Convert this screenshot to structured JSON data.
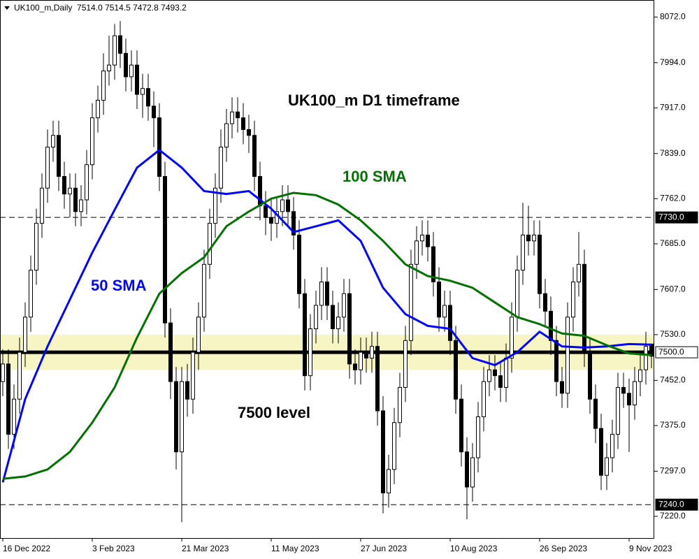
{
  "chart_data": {
    "type": "candlestick",
    "header": "UK100_m,Daily  7514.0 7514.5 7472.8 7493.2",
    "title": "UK100_m D1 timeframe",
    "annotation": "7500 level",
    "xlim": [
      -0.5,
      116.5
    ],
    "xticks": [
      {
        "value": 0,
        "label": "16 Dec 2022"
      },
      {
        "value": 16,
        "label": "3 Feb 2023"
      },
      {
        "value": 32,
        "label": "21 Mar 2023"
      },
      {
        "value": 48,
        "label": "11 May 2023"
      },
      {
        "value": 64,
        "label": "27 Jun 2023"
      },
      {
        "value": 80,
        "label": "10 Aug 2023"
      },
      {
        "value": 96,
        "label": "26 Sep 2023"
      },
      {
        "value": 112,
        "label": "9 Nov 2023"
      }
    ],
    "ylim": [
      7183,
      8101
    ],
    "yticks": [
      {
        "value": 8072,
        "label": "8072.0"
      },
      {
        "value": 7994,
        "label": "7994.0"
      },
      {
        "value": 7917,
        "label": "7917.0"
      },
      {
        "value": 7839,
        "label": "7839.0"
      },
      {
        "value": 7762,
        "label": "7762.0"
      },
      {
        "value": 7685,
        "label": "7685.0"
      },
      {
        "value": 7607,
        "label": "7607.0"
      },
      {
        "value": 7530,
        "label": "7530.0"
      },
      {
        "value": 7452,
        "label": "7452.0"
      },
      {
        "value": 7375,
        "label": "7375.0"
      },
      {
        "value": 7297,
        "label": "7297.0"
      },
      {
        "value": 7220,
        "label": "7220.0"
      }
    ],
    "up_color": "#ffffff",
    "down_color": "#000000",
    "zone": [
      7470,
      7530
    ],
    "zone_color": "#f7f5c4",
    "levels": [
      {
        "value": 7730,
        "label": "7730.0",
        "style": "dashed"
      },
      {
        "value": 7500,
        "label": "7500.0",
        "style": "thick"
      },
      {
        "value": 7240,
        "label": "7240.0",
        "style": "dashed"
      }
    ],
    "open": [
      7450,
      7480,
      7360,
      7420,
      7500,
      7560,
      7640,
      7720,
      7780,
      7850,
      7870,
      7800,
      7770,
      7780,
      7740,
      7760,
      7820,
      7900,
      7930,
      7980,
      7990,
      8040,
      8010,
      7970,
      7990,
      7940,
      7950,
      7920,
      7900,
      7800,
      7550,
      7450,
      7330,
      7450,
      7420,
      7500,
      7560,
      7650,
      7720,
      7780,
      7850,
      7890,
      7910,
      7900,
      7880,
      7870,
      7800,
      7750,
      7730,
      7720,
      7740,
      7760,
      7740,
      7700,
      7600,
      7460,
      7540,
      7580,
      7620,
      7580,
      7540,
      7560,
      7600,
      7480,
      7470,
      7500,
      7490,
      7510,
      7400,
      7260,
      7300,
      7380,
      7440,
      7520,
      7650,
      7690,
      7700,
      7680,
      7620,
      7560,
      7580,
      7520,
      7420,
      7330,
      7270,
      7320,
      7390,
      7450,
      7470,
      7460,
      7440,
      7490,
      7560,
      7640,
      7700,
      7690,
      7700,
      7600,
      7570,
      7520,
      7450,
      7430,
      7560,
      7620,
      7650,
      7500,
      7420,
      7370,
      7290,
      7320,
      7360,
      7440,
      7430,
      7410,
      7450,
      7470,
      7514.0
    ],
    "high": [
      7505,
      7505,
      7445,
      7525,
      7585,
      7665,
      7745,
      7805,
      7880,
      7895,
      7895,
      7825,
      7805,
      7805,
      7785,
      7845,
      7925,
      7955,
      8010,
      8040,
      8060,
      8065,
      8035,
      8015,
      8015,
      7975,
      7975,
      7945,
      7925,
      7825,
      7575,
      7475,
      7475,
      7480,
      7525,
      7585,
      7675,
      7745,
      7805,
      7880,
      7915,
      7935,
      7935,
      7925,
      7905,
      7895,
      7825,
      7775,
      7760,
      7765,
      7785,
      7785,
      7765,
      7725,
      7625,
      7565,
      7605,
      7645,
      7645,
      7605,
      7585,
      7625,
      7625,
      7505,
      7525,
      7525,
      7535,
      7535,
      7425,
      7325,
      7405,
      7465,
      7545,
      7675,
      7715,
      7725,
      7725,
      7705,
      7645,
      7605,
      7605,
      7545,
      7445,
      7355,
      7345,
      7415,
      7475,
      7495,
      7495,
      7485,
      7515,
      7585,
      7665,
      7755,
      7750,
      7725,
      7725,
      7625,
      7595,
      7545,
      7475,
      7585,
      7645,
      7705,
      7675,
      7525,
      7445,
      7395,
      7345,
      7385,
      7465,
      7465,
      7455,
      7475,
      7495,
      7535,
      7514.5
    ],
    "low": [
      7425,
      7335,
      7335,
      7395,
      7475,
      7535,
      7615,
      7695,
      7755,
      7825,
      7775,
      7745,
      7730,
      7715,
      7715,
      7735,
      7795,
      7875,
      7905,
      7955,
      7965,
      7985,
      7945,
      7945,
      7915,
      7900,
      7895,
      7850,
      7775,
      7525,
      7420,
      7300,
      7210,
      7390,
      7395,
      7470,
      7535,
      7625,
      7695,
      7755,
      7825,
      7865,
      7875,
      7855,
      7840,
      7775,
      7725,
      7700,
      7690,
      7695,
      7715,
      7715,
      7675,
      7575,
      7435,
      7435,
      7515,
      7555,
      7555,
      7515,
      7515,
      7535,
      7455,
      7445,
      7445,
      7465,
      7465,
      7375,
      7225,
      7235,
      7275,
      7355,
      7415,
      7495,
      7625,
      7665,
      7655,
      7595,
      7535,
      7535,
      7495,
      7395,
      7305,
      7215,
      7245,
      7295,
      7365,
      7425,
      7435,
      7415,
      7415,
      7465,
      7535,
      7615,
      7665,
      7665,
      7575,
      7545,
      7495,
      7425,
      7405,
      7405,
      7535,
      7595,
      7475,
      7395,
      7345,
      7265,
      7265,
      7295,
      7335,
      7405,
      7330,
      7385,
      7425,
      7445,
      7472.8
    ],
    "close": [
      7480,
      7360,
      7420,
      7500,
      7560,
      7640,
      7720,
      7780,
      7850,
      7870,
      7800,
      7770,
      7780,
      7740,
      7760,
      7820,
      7900,
      7930,
      7980,
      7990,
      8040,
      8010,
      7970,
      7990,
      7940,
      7950,
      7920,
      7900,
      7800,
      7550,
      7450,
      7330,
      7450,
      7420,
      7500,
      7560,
      7650,
      7720,
      7780,
      7850,
      7890,
      7910,
      7900,
      7880,
      7870,
      7800,
      7750,
      7730,
      7720,
      7740,
      7760,
      7740,
      7700,
      7600,
      7460,
      7540,
      7580,
      7620,
      7580,
      7540,
      7560,
      7600,
      7480,
      7470,
      7500,
      7490,
      7510,
      7400,
      7260,
      7300,
      7380,
      7440,
      7520,
      7650,
      7690,
      7700,
      7680,
      7620,
      7560,
      7580,
      7520,
      7420,
      7330,
      7270,
      7320,
      7390,
      7450,
      7470,
      7460,
      7440,
      7490,
      7560,
      7640,
      7700,
      7690,
      7700,
      7600,
      7570,
      7520,
      7450,
      7430,
      7560,
      7620,
      7650,
      7500,
      7420,
      7370,
      7290,
      7320,
      7360,
      7440,
      7430,
      7410,
      7450,
      7470,
      7510,
      7493.2
    ],
    "series": [
      {
        "name": "50 SMA",
        "color": "#0000ff",
        "x": [
          0,
          4,
          8,
          12,
          16,
          20,
          24,
          28,
          32,
          36,
          40,
          44,
          48,
          52,
          56,
          60,
          64,
          68,
          72,
          76,
          80,
          84,
          88,
          92,
          96,
          100,
          104,
          108,
          112,
          116
        ],
        "values": [
          7278,
          7420,
          7510,
          7590,
          7670,
          7743,
          7815,
          7845,
          7815,
          7775,
          7770,
          7775,
          7745,
          7705,
          7715,
          7725,
          7690,
          7610,
          7565,
          7545,
          7540,
          7490,
          7478,
          7500,
          7535,
          7510,
          7508,
          7510,
          7514,
          7513
        ]
      },
      {
        "name": "100 SMA",
        "color": "#007000",
        "x": [
          0,
          4,
          8,
          12,
          16,
          20,
          24,
          28,
          32,
          36,
          40,
          44,
          48,
          52,
          56,
          60,
          64,
          68,
          72,
          76,
          80,
          84,
          88,
          92,
          96,
          100,
          104,
          108,
          112,
          116
        ],
        "values": [
          7284,
          7288,
          7300,
          7330,
          7380,
          7440,
          7525,
          7600,
          7635,
          7662,
          7715,
          7740,
          7762,
          7772,
          7768,
          7752,
          7725,
          7690,
          7650,
          7630,
          7622,
          7610,
          7585,
          7560,
          7548,
          7532,
          7528,
          7512,
          7498,
          7495
        ]
      }
    ]
  }
}
